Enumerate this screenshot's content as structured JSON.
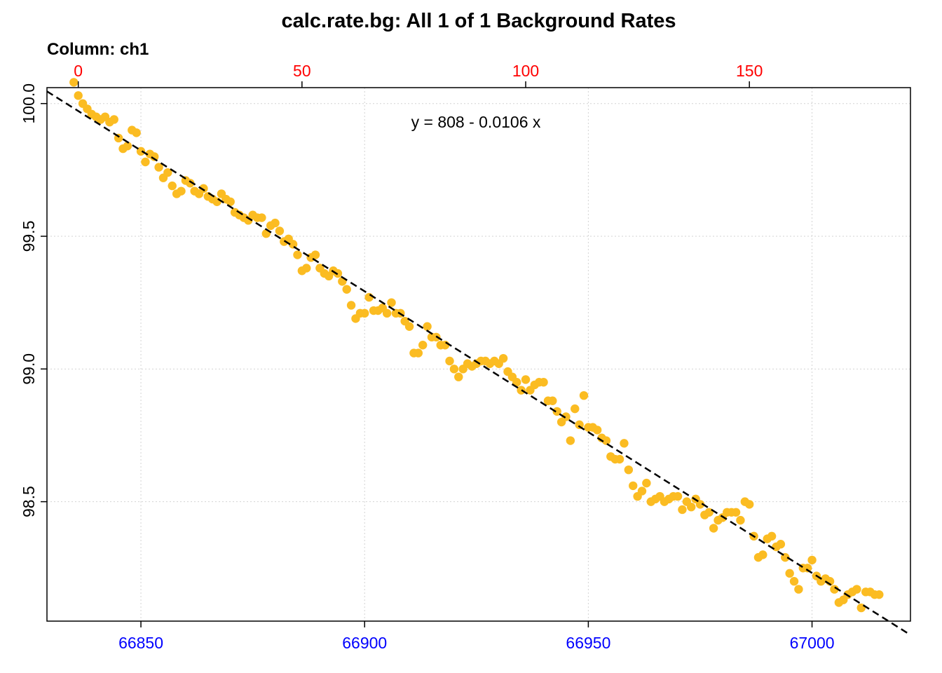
{
  "chart_data": {
    "type": "scatter",
    "title": "calc.rate.bg: All 1 of 1 Background Rates",
    "subtitle": "Column: ch1",
    "annotation": "y = 808 - 0.0106 x",
    "xlim": [
      66829,
      67022
    ],
    "ylim": [
      98.05,
      100.06
    ],
    "top_xlim": [
      -7,
      186
    ],
    "grid": true,
    "colors": {
      "points": "#FBBC22",
      "fit_line": "#000000",
      "bottom_ticks": "#0000FF",
      "top_ticks": "#FF0000",
      "left_ticks": "#000000"
    },
    "x_ticks": [
      66850,
      66900,
      66950,
      67000
    ],
    "x_tick_labels": [
      "66850",
      "66900",
      "66950",
      "67000"
    ],
    "top_ticks": [
      0,
      50,
      100,
      150
    ],
    "top_tick_labels": [
      "0",
      "50",
      "100",
      "150"
    ],
    "y_ticks": [
      98.5,
      99.0,
      99.5,
      100.0
    ],
    "y_tick_labels": [
      "98.5",
      "99.0",
      "99.5",
      "100.0"
    ],
    "fit_line": {
      "x": [
        66829,
        67022
      ],
      "y": [
        100.046,
        97.998
      ]
    },
    "points": [
      [
        66835,
        100.08
      ],
      [
        66836,
        100.03
      ],
      [
        66837,
        100.0
      ],
      [
        66838,
        99.98
      ],
      [
        66839,
        99.96
      ],
      [
        66840,
        99.95
      ],
      [
        66841,
        99.94
      ],
      [
        66842,
        99.95
      ],
      [
        66843,
        99.93
      ],
      [
        66844,
        99.94
      ],
      [
        66845,
        99.87
      ],
      [
        66846,
        99.83
      ],
      [
        66847,
        99.84
      ],
      [
        66848,
        99.9
      ],
      [
        66849,
        99.89
      ],
      [
        66850,
        99.82
      ],
      [
        66851,
        99.78
      ],
      [
        66852,
        99.81
      ],
      [
        66853,
        99.8
      ],
      [
        66854,
        99.76
      ],
      [
        66855,
        99.72
      ],
      [
        66856,
        99.74
      ],
      [
        66857,
        99.69
      ],
      [
        66858,
        99.66
      ],
      [
        66859,
        99.67
      ],
      [
        66860,
        99.71
      ],
      [
        66861,
        99.7
      ],
      [
        66862,
        99.67
      ],
      [
        66863,
        99.66
      ],
      [
        66864,
        99.68
      ],
      [
        66865,
        99.65
      ],
      [
        66866,
        99.64
      ],
      [
        66867,
        99.63
      ],
      [
        66868,
        99.66
      ],
      [
        66869,
        99.64
      ],
      [
        66870,
        99.63
      ],
      [
        66871,
        99.59
      ],
      [
        66872,
        99.58
      ],
      [
        66873,
        99.57
      ],
      [
        66874,
        99.56
      ],
      [
        66875,
        99.58
      ],
      [
        66876,
        99.57
      ],
      [
        66877,
        99.57
      ],
      [
        66878,
        99.51
      ],
      [
        66879,
        99.54
      ],
      [
        66880,
        99.55
      ],
      [
        66881,
        99.52
      ],
      [
        66882,
        99.48
      ],
      [
        66883,
        99.49
      ],
      [
        66884,
        99.47
      ],
      [
        66885,
        99.43
      ],
      [
        66886,
        99.37
      ],
      [
        66887,
        99.38
      ],
      [
        66888,
        99.42
      ],
      [
        66889,
        99.43
      ],
      [
        66890,
        99.38
      ],
      [
        66891,
        99.36
      ],
      [
        66892,
        99.35
      ],
      [
        66893,
        99.37
      ],
      [
        66894,
        99.36
      ],
      [
        66895,
        99.33
      ],
      [
        66896,
        99.3
      ],
      [
        66897,
        99.24
      ],
      [
        66898,
        99.19
      ],
      [
        66899,
        99.21
      ],
      [
        66900,
        99.21
      ],
      [
        66901,
        99.27
      ],
      [
        66902,
        99.22
      ],
      [
        66903,
        99.22
      ],
      [
        66904,
        99.23
      ],
      [
        66905,
        99.21
      ],
      [
        66906,
        99.25
      ],
      [
        66907,
        99.21
      ],
      [
        66908,
        99.21
      ],
      [
        66909,
        99.18
      ],
      [
        66910,
        99.16
      ],
      [
        66911,
        99.06
      ],
      [
        66912,
        99.06
      ],
      [
        66913,
        99.09
      ],
      [
        66914,
        99.16
      ],
      [
        66915,
        99.12
      ],
      [
        66916,
        99.12
      ],
      [
        66917,
        99.09
      ],
      [
        66918,
        99.09
      ],
      [
        66919,
        99.03
      ],
      [
        66920,
        99.0
      ],
      [
        66921,
        98.97
      ],
      [
        66922,
        99.0
      ],
      [
        66923,
        99.02
      ],
      [
        66924,
        99.01
      ],
      [
        66925,
        99.02
      ],
      [
        66926,
        99.03
      ],
      [
        66927,
        99.03
      ],
      [
        66928,
        99.02
      ],
      [
        66929,
        99.03
      ],
      [
        66930,
        99.02
      ],
      [
        66931,
        99.04
      ],
      [
        66932,
        98.99
      ],
      [
        66933,
        98.97
      ],
      [
        66934,
        98.95
      ],
      [
        66935,
        98.92
      ],
      [
        66936,
        98.96
      ],
      [
        66937,
        98.92
      ],
      [
        66938,
        98.94
      ],
      [
        66939,
        98.95
      ],
      [
        66940,
        98.95
      ],
      [
        66941,
        98.88
      ],
      [
        66942,
        98.88
      ],
      [
        66943,
        98.84
      ],
      [
        66944,
        98.8
      ],
      [
        66945,
        98.82
      ],
      [
        66946,
        98.73
      ],
      [
        66947,
        98.85
      ],
      [
        66948,
        98.79
      ],
      [
        66949,
        98.9
      ],
      [
        66950,
        98.78
      ],
      [
        66951,
        98.78
      ],
      [
        66952,
        98.77
      ],
      [
        66953,
        98.74
      ],
      [
        66954,
        98.73
      ],
      [
        66955,
        98.67
      ],
      [
        66956,
        98.66
      ],
      [
        66957,
        98.66
      ],
      [
        66958,
        98.72
      ],
      [
        66959,
        98.62
      ],
      [
        66960,
        98.56
      ],
      [
        66961,
        98.52
      ],
      [
        66962,
        98.54
      ],
      [
        66963,
        98.57
      ],
      [
        66964,
        98.5
      ],
      [
        66965,
        98.51
      ],
      [
        66966,
        98.52
      ],
      [
        66967,
        98.5
      ],
      [
        66968,
        98.51
      ],
      [
        66969,
        98.52
      ],
      [
        66970,
        98.52
      ],
      [
        66971,
        98.47
      ],
      [
        66972,
        98.5
      ],
      [
        66973,
        98.48
      ],
      [
        66974,
        98.51
      ],
      [
        66975,
        98.49
      ],
      [
        66976,
        98.45
      ],
      [
        66977,
        98.46
      ],
      [
        66978,
        98.4
      ],
      [
        66979,
        98.43
      ],
      [
        66980,
        98.44
      ],
      [
        66981,
        98.46
      ],
      [
        66982,
        98.46
      ],
      [
        66983,
        98.46
      ],
      [
        66984,
        98.43
      ],
      [
        66985,
        98.5
      ],
      [
        66986,
        98.49
      ],
      [
        66987,
        98.37
      ],
      [
        66988,
        98.29
      ],
      [
        66989,
        98.3
      ],
      [
        66990,
        98.36
      ],
      [
        66991,
        98.37
      ],
      [
        66992,
        98.33
      ],
      [
        66993,
        98.34
      ],
      [
        66994,
        98.29
      ],
      [
        66995,
        98.23
      ],
      [
        66996,
        98.2
      ],
      [
        66997,
        98.17
      ],
      [
        66998,
        98.25
      ],
      [
        66999,
        98.25
      ],
      [
        67000,
        98.28
      ],
      [
        67001,
        98.22
      ],
      [
        67002,
        98.2
      ],
      [
        67003,
        98.21
      ],
      [
        67004,
        98.2
      ],
      [
        67005,
        98.17
      ],
      [
        67006,
        98.12
      ],
      [
        67007,
        98.13
      ],
      [
        67008,
        98.15
      ],
      [
        67009,
        98.16
      ],
      [
        67010,
        98.17
      ],
      [
        67011,
        98.1
      ],
      [
        67012,
        98.16
      ],
      [
        67013,
        98.16
      ],
      [
        67014,
        98.15
      ],
      [
        67015,
        98.15
      ]
    ]
  }
}
